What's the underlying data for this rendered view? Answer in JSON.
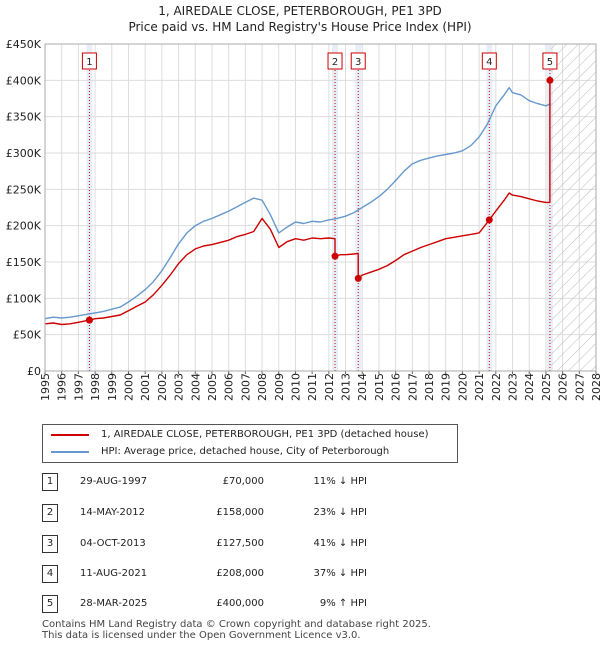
{
  "chart_data": {
    "type": "line",
    "title": "1, AIREDALE CLOSE, PETERBOROUGH, PE1 3PD",
    "subtitle": "Price paid vs. HM Land Registry's House Price Index (HPI)",
    "xlim": [
      1995,
      2028
    ],
    "ylim": [
      0,
      450000
    ],
    "y_ticks": [
      0,
      50000,
      100000,
      150000,
      200000,
      250000,
      300000,
      350000,
      400000,
      450000
    ],
    "y_tick_labels": [
      "£0",
      "£50K",
      "£100K",
      "£150K",
      "£200K",
      "£250K",
      "£300K",
      "£350K",
      "£400K",
      "£450K"
    ],
    "x_ticks": [
      "1995",
      "1996",
      "1997",
      "1998",
      "1999",
      "2000",
      "2001",
      "2002",
      "2003",
      "2004",
      "2005",
      "2006",
      "2007",
      "2008",
      "2009",
      "2010",
      "2011",
      "2012",
      "2013",
      "2014",
      "2015",
      "2016",
      "2017",
      "2018",
      "2019",
      "2020",
      "2021",
      "2022",
      "2023",
      "2024",
      "2025",
      "2026",
      "2027",
      "2028"
    ],
    "forecast_from": 2025.3,
    "colors": {
      "property": "#cc0000",
      "hpi": "#6699cc",
      "grid": "#dddddd",
      "band": "#e8eef8",
      "hatch": "#bbbbbb"
    },
    "series": [
      {
        "name": "1, AIREDALE CLOSE, PETERBOROUGH, PE1 3PD (detached house)",
        "x": [
          1995.0,
          1995.5,
          1996.0,
          1996.5,
          1997.0,
          1997.66,
          1998.0,
          1998.5,
          1999.0,
          1999.5,
          2000.0,
          2000.5,
          2001.0,
          2001.5,
          2002.0,
          2002.5,
          2003.0,
          2003.5,
          2004.0,
          2004.5,
          2005.0,
          2005.5,
          2006.0,
          2006.5,
          2007.0,
          2007.5,
          2008.0,
          2008.5,
          2009.0,
          2009.5,
          2010.0,
          2010.5,
          2011.0,
          2011.5,
          2012.0,
          2012.37,
          2012.37,
          2012.7,
          2013.0,
          2013.5,
          2013.76,
          2013.76,
          2014.0,
          2014.5,
          2015.0,
          2015.5,
          2016.0,
          2016.5,
          2017.0,
          2017.5,
          2018.0,
          2018.5,
          2019.0,
          2019.5,
          2020.0,
          2020.5,
          2021.0,
          2021.61,
          2022.0,
          2022.5,
          2022.8,
          2023.0,
          2023.5,
          2024.0,
          2024.5,
          2025.0,
          2025.24,
          2025.24,
          2025.3
        ],
        "values": [
          65000,
          66000,
          64000,
          65000,
          67000,
          70000,
          72000,
          73000,
          75000,
          77000,
          83000,
          89000,
          95000,
          105000,
          118000,
          132000,
          148000,
          160000,
          168000,
          172000,
          174000,
          177000,
          180000,
          185000,
          188000,
          192000,
          210000,
          195000,
          170000,
          178000,
          182000,
          180000,
          183000,
          182000,
          183000,
          182000,
          158000,
          160000,
          160000,
          161000,
          162000,
          127500,
          132000,
          136000,
          140000,
          145000,
          152000,
          160000,
          165000,
          170000,
          174000,
          178000,
          182000,
          184000,
          186000,
          188000,
          190000,
          208000,
          220000,
          235000,
          245000,
          242000,
          240000,
          237000,
          234000,
          232000,
          232000,
          400000,
          398000
        ]
      },
      {
        "name": "HPI: Average price, detached house, City of Peterborough",
        "x": [
          1995.0,
          1995.5,
          1996.0,
          1996.5,
          1997.0,
          1997.5,
          1998.0,
          1998.5,
          1999.0,
          1999.5,
          2000.0,
          2000.5,
          2001.0,
          2001.5,
          2002.0,
          2002.5,
          2003.0,
          2003.5,
          2004.0,
          2004.5,
          2005.0,
          2005.5,
          2006.0,
          2006.5,
          2007.0,
          2007.5,
          2008.0,
          2008.5,
          2009.0,
          2009.5,
          2010.0,
          2010.5,
          2011.0,
          2011.5,
          2012.0,
          2012.5,
          2013.0,
          2013.5,
          2014.0,
          2014.5,
          2015.0,
          2015.5,
          2016.0,
          2016.5,
          2017.0,
          2017.5,
          2018.0,
          2018.5,
          2019.0,
          2019.5,
          2020.0,
          2020.5,
          2021.0,
          2021.5,
          2022.0,
          2022.5,
          2022.8,
          2023.0,
          2023.5,
          2024.0,
          2024.5,
          2025.0,
          2025.3
        ],
        "values": [
          72000,
          74000,
          73000,
          74000,
          76000,
          78000,
          80000,
          82000,
          85000,
          88000,
          95000,
          103000,
          112000,
          123000,
          138000,
          156000,
          175000,
          190000,
          200000,
          206000,
          210000,
          215000,
          220000,
          226000,
          232000,
          238000,
          235000,
          215000,
          190000,
          198000,
          205000,
          203000,
          206000,
          205000,
          208000,
          210000,
          213000,
          218000,
          225000,
          232000,
          240000,
          250000,
          262000,
          275000,
          285000,
          290000,
          293000,
          296000,
          298000,
          300000,
          303000,
          310000,
          322000,
          340000,
          365000,
          380000,
          390000,
          383000,
          380000,
          372000,
          368000,
          365000,
          368000
        ]
      }
    ],
    "sales": [
      {
        "num": "1",
        "year": 1997.66,
        "price": 70000
      },
      {
        "num": "2",
        "year": 2012.37,
        "price": 158000
      },
      {
        "num": "3",
        "year": 2013.76,
        "price": 127500
      },
      {
        "num": "4",
        "year": 2021.61,
        "price": 208000
      },
      {
        "num": "5",
        "year": 2025.24,
        "price": 400000
      }
    ]
  },
  "legend": {
    "property_label": "1, AIREDALE CLOSE, PETERBOROUGH, PE1 3PD (detached house)",
    "hpi_label": "HPI: Average price, detached house, City of Peterborough"
  },
  "table": [
    {
      "num": "1",
      "date": "29-AUG-1997",
      "price": "£70,000",
      "hpi": "11% ↓ HPI"
    },
    {
      "num": "2",
      "date": "14-MAY-2012",
      "price": "£158,000",
      "hpi": "23% ↓ HPI"
    },
    {
      "num": "3",
      "date": "04-OCT-2013",
      "price": "£127,500",
      "hpi": "41% ↓ HPI"
    },
    {
      "num": "4",
      "date": "11-AUG-2021",
      "price": "£208,000",
      "hpi": "37% ↓ HPI"
    },
    {
      "num": "5",
      "date": "28-MAR-2025",
      "price": "£400,000",
      "hpi": "9% ↑ HPI"
    }
  ],
  "footer": {
    "line1": "Contains HM Land Registry data © Crown copyright and database right 2025.",
    "line2": "This data is licensed under the Open Government Licence v3.0."
  }
}
